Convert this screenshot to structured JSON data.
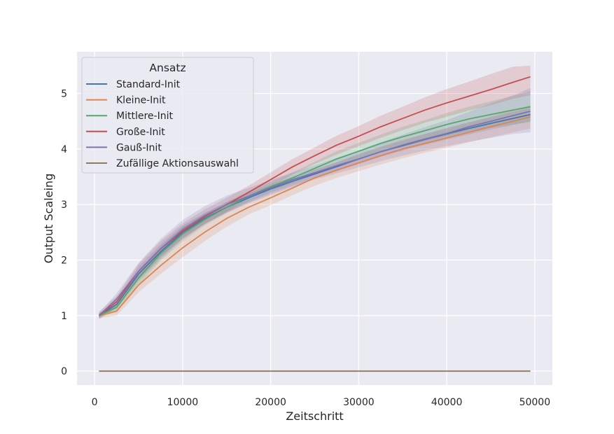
{
  "chart_data": {
    "type": "line",
    "title": "",
    "xlabel": "Zeitschritt",
    "ylabel": "Output Scaleing",
    "xlim": [
      -2000,
      52000
    ],
    "ylim": [
      -0.25,
      5.75
    ],
    "xticks": [
      0,
      10000,
      20000,
      30000,
      40000,
      50000
    ],
    "yticks": [
      0,
      1,
      2,
      3,
      4,
      5
    ],
    "grid": true,
    "legend": {
      "title": "Ansatz",
      "placement": "top-left"
    },
    "x": [
      500,
      2500,
      5000,
      7500,
      10000,
      12500,
      15000,
      17500,
      20000,
      22500,
      25000,
      27500,
      30000,
      32500,
      35000,
      37500,
      40000,
      42500,
      45000,
      47500,
      49500
    ],
    "series": [
      {
        "name": "Standard-Init",
        "color": "#4c72b0",
        "values": [
          1.0,
          1.2,
          1.75,
          2.15,
          2.5,
          2.75,
          2.95,
          3.12,
          3.28,
          3.42,
          3.55,
          3.68,
          3.82,
          3.95,
          4.06,
          4.17,
          4.27,
          4.37,
          4.46,
          4.55,
          4.62
        ],
        "lower": [
          0.97,
          1.12,
          1.62,
          2.02,
          2.38,
          2.65,
          2.86,
          3.04,
          3.2,
          3.34,
          3.47,
          3.6,
          3.73,
          3.86,
          3.97,
          4.07,
          4.17,
          4.26,
          4.35,
          4.43,
          4.5
        ],
        "upper": [
          1.03,
          1.28,
          1.88,
          2.28,
          2.62,
          2.85,
          3.04,
          3.2,
          3.36,
          3.5,
          3.63,
          3.76,
          3.91,
          4.04,
          4.15,
          4.27,
          4.37,
          4.48,
          4.57,
          4.67,
          4.74
        ]
      },
      {
        "name": "Kleine-Init",
        "color": "#dd8452",
        "values": [
          1.0,
          1.08,
          1.55,
          1.9,
          2.22,
          2.5,
          2.75,
          2.95,
          3.12,
          3.3,
          3.48,
          3.62,
          3.75,
          3.88,
          4.0,
          4.1,
          4.2,
          4.3,
          4.4,
          4.5,
          4.58
        ],
        "lower": [
          0.95,
          1.0,
          1.42,
          1.75,
          2.05,
          2.34,
          2.6,
          2.82,
          2.99,
          3.17,
          3.34,
          3.48,
          3.6,
          3.72,
          3.83,
          3.93,
          4.02,
          4.12,
          4.21,
          4.3,
          4.37
        ],
        "upper": [
          1.05,
          1.16,
          1.68,
          2.05,
          2.39,
          2.66,
          2.9,
          3.08,
          3.25,
          3.43,
          3.62,
          3.76,
          3.9,
          4.04,
          4.17,
          4.27,
          4.38,
          4.48,
          4.59,
          4.7,
          4.79
        ]
      },
      {
        "name": "Mittlere-Init",
        "color": "#55a868",
        "values": [
          1.0,
          1.15,
          1.68,
          2.12,
          2.47,
          2.73,
          2.95,
          3.15,
          3.32,
          3.48,
          3.65,
          3.82,
          3.96,
          4.1,
          4.22,
          4.33,
          4.44,
          4.54,
          4.62,
          4.7,
          4.76
        ],
        "lower": [
          0.96,
          1.07,
          1.55,
          1.99,
          2.34,
          2.62,
          2.85,
          3.06,
          3.23,
          3.38,
          3.53,
          3.68,
          3.81,
          3.94,
          4.04,
          4.14,
          4.23,
          4.32,
          4.38,
          4.44,
          4.48
        ],
        "upper": [
          1.04,
          1.23,
          1.81,
          2.25,
          2.6,
          2.84,
          3.05,
          3.24,
          3.41,
          3.58,
          3.77,
          3.96,
          4.11,
          4.26,
          4.4,
          4.52,
          4.65,
          4.76,
          4.86,
          4.96,
          5.04
        ]
      },
      {
        "name": "Große-Init",
        "color": "#c44e52",
        "values": [
          1.0,
          1.25,
          1.8,
          2.2,
          2.52,
          2.78,
          3.0,
          3.22,
          3.45,
          3.68,
          3.88,
          4.07,
          4.23,
          4.4,
          4.55,
          4.7,
          4.83,
          4.95,
          5.07,
          5.2,
          5.3
        ],
        "lower": [
          0.93,
          1.15,
          1.67,
          2.06,
          2.38,
          2.65,
          2.88,
          3.1,
          3.32,
          3.54,
          3.73,
          3.9,
          4.05,
          4.2,
          4.34,
          4.47,
          4.58,
          4.69,
          4.79,
          4.9,
          4.97
        ],
        "upper": [
          1.07,
          1.35,
          1.93,
          2.34,
          2.66,
          2.91,
          3.12,
          3.34,
          3.58,
          3.82,
          4.03,
          4.24,
          4.41,
          4.6,
          4.76,
          4.93,
          5.08,
          5.21,
          5.35,
          5.48,
          5.5
        ]
      },
      {
        "name": "Gauß-Init",
        "color": "#8172b3",
        "values": [
          1.0,
          1.3,
          1.8,
          2.2,
          2.55,
          2.8,
          3.0,
          3.15,
          3.3,
          3.45,
          3.57,
          3.7,
          3.82,
          3.95,
          4.07,
          4.18,
          4.28,
          4.4,
          4.5,
          4.6,
          4.68
        ],
        "lower": [
          0.95,
          1.2,
          1.65,
          2.05,
          2.4,
          2.65,
          2.85,
          3.02,
          3.17,
          3.32,
          3.45,
          3.56,
          3.67,
          3.78,
          3.88,
          3.97,
          4.05,
          4.13,
          4.2,
          4.27,
          4.3
        ],
        "upper": [
          1.05,
          1.4,
          1.95,
          2.38,
          2.72,
          2.97,
          3.16,
          3.3,
          3.44,
          3.58,
          3.7,
          3.84,
          3.97,
          4.12,
          4.26,
          4.39,
          4.52,
          4.67,
          4.82,
          4.96,
          5.1
        ]
      },
      {
        "name": "Zufällige Aktionsauswahl",
        "color": "#937860",
        "values": [
          0,
          0,
          0,
          0,
          0,
          0,
          0,
          0,
          0,
          0,
          0,
          0,
          0,
          0,
          0,
          0,
          0,
          0,
          0,
          0,
          0
        ],
        "lower": [
          0,
          0,
          0,
          0,
          0,
          0,
          0,
          0,
          0,
          0,
          0,
          0,
          0,
          0,
          0,
          0,
          0,
          0,
          0,
          0,
          0
        ],
        "upper": [
          0,
          0,
          0,
          0,
          0,
          0,
          0,
          0,
          0,
          0,
          0,
          0,
          0,
          0,
          0,
          0,
          0,
          0,
          0,
          0,
          0
        ]
      }
    ],
    "colors": {
      "plot_background": "#eaeaf2",
      "grid": "#ffffff",
      "text": "#262626"
    }
  }
}
